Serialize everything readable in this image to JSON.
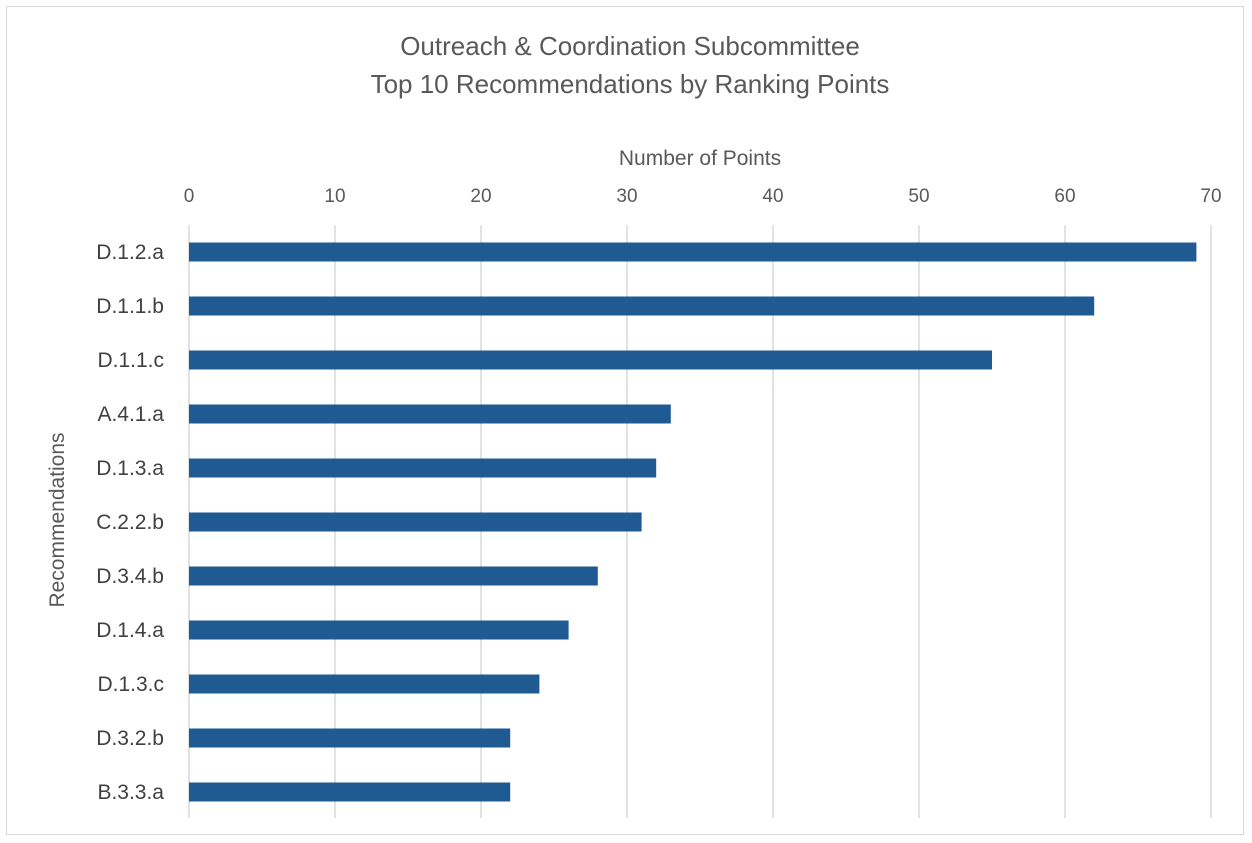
{
  "chart_data": {
    "type": "bar",
    "orientation": "horizontal",
    "title": "Outreach & Coordination Subcommittee",
    "subtitle": "Top 10 Recommendations by Ranking Points",
    "xlabel": "Number of Points",
    "ylabel": "Recommendations",
    "xlim": [
      0,
      70
    ],
    "x_ticks": [
      0,
      10,
      20,
      30,
      40,
      50,
      60,
      70
    ],
    "x_axis_position": "top",
    "grid": true,
    "legend": "none",
    "categories": [
      "D.1.2.a",
      "D.1.1.b",
      "D.1.1.c",
      "A.4.1.a",
      "D.1.3.a",
      "C.2.2.b",
      "D.3.4.b",
      "D.1.4.a",
      "D.1.3.c",
      "D.3.2.b",
      "B.3.3.a"
    ],
    "values": [
      69,
      62,
      55,
      33,
      32,
      31,
      28,
      26,
      24,
      22,
      22
    ],
    "bar_color": "#1f5b92",
    "grid_color": "#d9d9d9"
  }
}
